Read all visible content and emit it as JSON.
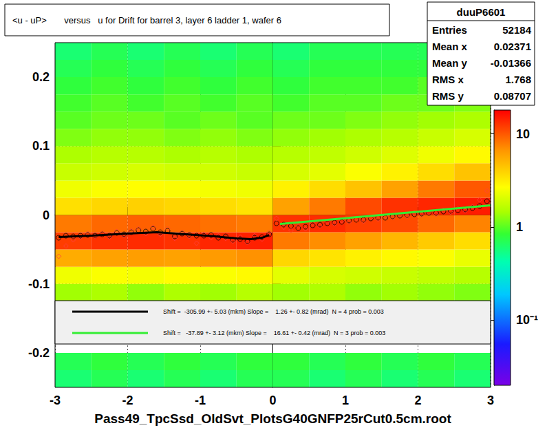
{
  "chart_data": {
    "type": "scatter",
    "title": "<u - uP>       versus   u for Drift for barrel 3, layer 6 ladder 1, wafer 6",
    "x_label": "Pass49_TpcSsd_OldSvt_PlotsG40GNFP25rCut0.5cm.root",
    "xlim": [
      -3,
      3
    ],
    "xticks": [
      -3,
      -2,
      -1,
      0,
      1,
      2,
      3
    ],
    "ylim": [
      -0.25,
      0.25
    ],
    "yticks": [
      -0.2,
      -0.1,
      0,
      0.1,
      0.2
    ],
    "grid": true,
    "stats": {
      "title": "duuP6601",
      "rows": [
        {
          "label": "Entries",
          "value": 52184
        },
        {
          "label": "Mean x",
          "value": 0.02371
        },
        {
          "label": "Mean y",
          "value": -0.01366
        },
        {
          "label": "RMS x",
          "value": 1.768
        },
        {
          "label": "RMS y",
          "value": 0.08707
        }
      ]
    },
    "cells": {
      "x_edges": [
        -3,
        -2.5,
        -2,
        -1.5,
        -1,
        -0.5,
        0,
        0.5,
        1,
        1.5,
        2,
        2.5,
        3
      ],
      "y_edges": [
        -0.25,
        -0.225,
        -0.2,
        -0.175,
        -0.15,
        -0.125,
        -0.1,
        -0.075,
        -0.05,
        -0.025,
        0,
        0.025,
        0.05,
        0.075,
        0.1,
        0.125,
        0.15,
        0.175,
        0.2,
        0.225,
        0.25
      ],
      "z": [
        [
          0.6,
          0.7,
          0.6,
          0.7,
          0.6,
          0.7,
          0.7,
          0.6,
          0.7,
          0.6,
          0.7,
          0.6
        ],
        [
          0.7,
          0.8,
          0.7,
          0.8,
          0.7,
          0.8,
          0.8,
          0.7,
          0.8,
          0.7,
          0.8,
          0.7
        ],
        [
          null,
          null,
          null,
          null,
          null,
          null,
          null,
          null,
          null,
          null,
          null,
          null
        ],
        [
          null,
          null,
          null,
          null,
          null,
          null,
          null,
          null,
          null,
          null,
          null,
          null
        ],
        [
          null,
          null,
          null,
          null,
          null,
          null,
          null,
          null,
          null,
          null,
          null,
          null
        ],
        [
          1.4,
          1.5,
          1.3,
          1.5,
          1.4,
          1.6,
          1.4,
          1.5,
          1.3,
          1.4,
          1.3,
          1.2
        ],
        [
          2.4,
          2.6,
          2.5,
          2.7,
          2.6,
          2.8,
          2.2,
          2.0,
          1.9,
          1.8,
          1.7,
          1.6
        ],
        [
          5.5,
          6.0,
          6.2,
          6.0,
          6.4,
          6.8,
          3.8,
          3.4,
          3.0,
          2.8,
          2.6,
          2.3
        ],
        [
          12,
          13,
          13.5,
          13,
          14,
          14.5,
          8,
          7,
          6,
          5,
          4.2,
          3.6
        ],
        [
          8,
          9,
          9.5,
          9,
          8.5,
          8,
          13,
          13.5,
          12,
          11,
          9,
          7.5
        ],
        [
          3.5,
          3.8,
          4,
          3.8,
          3.6,
          3.4,
          6,
          8,
          11,
          13,
          14,
          15
        ],
        [
          2.4,
          2.6,
          2.7,
          2.6,
          2.5,
          2.4,
          3,
          3.6,
          4.5,
          6,
          8,
          10
        ],
        [
          1.8,
          1.9,
          2,
          1.9,
          1.9,
          1.8,
          2,
          2.2,
          2.6,
          3,
          3.6,
          4.5
        ],
        [
          1.5,
          1.6,
          1.6,
          1.5,
          1.6,
          1.5,
          1.6,
          1.7,
          1.9,
          2.1,
          2.4,
          2.8
        ],
        [
          1.2,
          1.3,
          1.3,
          1.2,
          1.3,
          1.2,
          1.3,
          1.4,
          1.5,
          1.6,
          1.8,
          2
        ],
        [
          1.0,
          1.1,
          1.1,
          1.0,
          1.1,
          1.0,
          1.1,
          1.1,
          1.2,
          1.3,
          1.4,
          1.5
        ],
        [
          0.9,
          1.0,
          0.9,
          1.0,
          0.9,
          1.0,
          0.9,
          1.0,
          1.0,
          1.1,
          1.1,
          1.2
        ],
        [
          0.8,
          0.9,
          0.8,
          0.9,
          0.8,
          0.9,
          0.8,
          0.9,
          0.9,
          0.9,
          1.0,
          1.0
        ],
        [
          0.7,
          0.8,
          0.7,
          0.8,
          0.7,
          0.8,
          0.7,
          0.8,
          0.8,
          0.8,
          0.8,
          0.9
        ],
        [
          0.6,
          0.7,
          0.6,
          0.7,
          0.6,
          0.7,
          0.6,
          0.7,
          0.7,
          0.7,
          0.7,
          0.8
        ]
      ]
    },
    "colorbar": {
      "range": [
        0.02,
        18
      ],
      "log": true,
      "ticks": [
        {
          "value": 0.1,
          "label": "10⁻¹"
        },
        1,
        10
      ]
    },
    "series": [
      {
        "type": "scatter",
        "marker": "circle",
        "color": "#000000",
        "x": [
          -2.95,
          -2.85,
          -2.75,
          -2.65,
          -2.55,
          -2.45,
          -2.35,
          -2.25,
          -2.15,
          -2.05,
          -1.95,
          -1.85,
          -1.75,
          -1.65,
          -1.55,
          -1.45,
          -1.35,
          -1.25,
          -1.15,
          -1.05,
          -0.95,
          -0.85,
          -0.75,
          -0.65,
          -0.55,
          -0.45,
          -0.35,
          -0.25,
          -0.15,
          -0.05,
          0.05,
          0.15,
          0.25,
          0.35,
          0.45,
          0.55,
          0.65,
          0.75,
          0.85,
          0.95,
          1.05,
          1.15,
          1.25,
          1.35,
          1.45,
          1.55,
          1.65,
          1.75,
          1.85,
          1.95,
          2.05,
          2.15,
          2.25,
          2.35,
          2.45,
          2.55,
          2.65,
          2.75,
          2.85,
          2.95
        ],
        "values": [
          -0.033,
          -0.03,
          -0.031,
          -0.03,
          -0.029,
          -0.03,
          -0.028,
          -0.03,
          -0.026,
          -0.028,
          -0.025,
          -0.022,
          -0.024,
          -0.02,
          -0.025,
          -0.023,
          -0.031,
          -0.027,
          -0.029,
          -0.03,
          -0.03,
          -0.029,
          -0.033,
          -0.031,
          -0.036,
          -0.035,
          -0.038,
          -0.033,
          -0.032,
          -0.028,
          -0.012,
          -0.014,
          -0.016,
          -0.019,
          -0.017,
          -0.015,
          -0.014,
          -0.012,
          -0.011,
          -0.01,
          -0.008,
          -0.007,
          -0.007,
          -0.005,
          -0.004,
          -0.004,
          -0.002,
          -0.001,
          0.0,
          0.001,
          0.002,
          0.003,
          0.003,
          0.005,
          0.006,
          0.007,
          0.008,
          0.01,
          0.013,
          0.02
        ]
      },
      {
        "type": "scatter",
        "marker": "diamond",
        "color": "#ff4040",
        "x": [
          -2.95,
          -2.85,
          -2.75,
          -2.65,
          -2.55,
          -2.45,
          -2.35,
          -2.25,
          -2.15,
          -2.05,
          -1.95,
          -1.85,
          -1.75,
          -1.65,
          -1.55,
          -1.45,
          -1.35,
          -1.25,
          -1.15,
          -1.05,
          -0.95,
          -0.85,
          -0.75,
          -0.65,
          -0.55,
          -0.45,
          -0.35,
          -0.25,
          -0.15,
          -0.05,
          0.05,
          0.15,
          0.25,
          0.35,
          0.45,
          0.55,
          0.65,
          0.75,
          0.85,
          0.95,
          1.05,
          1.15,
          1.25,
          1.35,
          1.45,
          1.55,
          1.65,
          1.75,
          1.85,
          1.95,
          2.05,
          2.15,
          2.25,
          2.35,
          2.45,
          2.55,
          2.65,
          2.75,
          2.85,
          2.95
        ],
        "values": [
          -0.06,
          -0.045,
          -0.036,
          -0.032,
          -0.027,
          -0.031,
          -0.026,
          -0.032,
          -0.024,
          -0.03,
          -0.023,
          -0.02,
          -0.027,
          -0.018,
          -0.028,
          -0.02,
          -0.034,
          -0.025,
          -0.031,
          -0.041,
          -0.028,
          -0.033,
          -0.03,
          -0.034,
          -0.038,
          -0.032,
          -0.04,
          -0.03,
          -0.035,
          -0.025,
          -0.005,
          -0.018,
          -0.022,
          -0.016,
          -0.02,
          -0.012,
          -0.016,
          -0.01,
          -0.013,
          -0.008,
          -0.01,
          -0.005,
          -0.009,
          -0.004,
          -0.006,
          -0.002,
          -0.004,
          0.0,
          -0.002,
          0.003,
          0.0,
          0.004,
          0.001,
          0.007,
          0.004,
          0.009,
          0.006,
          0.012,
          0.022,
          0.035
        ]
      },
      {
        "type": "line",
        "name": "Shift =  -305.99 +- 5.03 (mkm) Slope =    1.26 +- 0.82 (mrad)  N = 4 prob = 0.003",
        "color": "#000000",
        "line_style": "solid",
        "x": [
          -2.95,
          -2.5,
          -2,
          -1.6,
          -1.2,
          -0.8,
          -0.5,
          -0.3,
          -0.15,
          -0.05
        ],
        "values": [
          -0.032,
          -0.03,
          -0.027,
          -0.025,
          -0.028,
          -0.031,
          -0.034,
          -0.035,
          -0.033,
          -0.029
        ]
      },
      {
        "type": "line",
        "name": "Shift =   -37.89 +- 3.12 (mkm) Slope =    16.61 +- 0.42 (mrad)  N = 3 prob = 0.003",
        "color": "#33ee33",
        "line_style": "solid",
        "x": [
          0.1,
          3
        ],
        "values": [
          -0.013,
          0.014
        ]
      }
    ]
  }
}
